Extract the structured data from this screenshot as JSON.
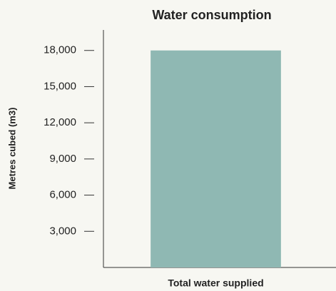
{
  "chart_data": {
    "type": "bar",
    "title": "Water consumption",
    "categories": [
      "Total water supplied"
    ],
    "values": [
      18000
    ],
    "color": "#8fb8b3",
    "ylabel": "Metres cubed (m3)",
    "ylim": [
      0,
      19700
    ],
    "yticks": [
      {
        "value": 3000,
        "label": "3,000"
      },
      {
        "value": 6000,
        "label": "6,000"
      },
      {
        "value": 9000,
        "label": "9,000"
      },
      {
        "value": 12000,
        "label": "12,000"
      },
      {
        "value": 15000,
        "label": "15,000"
      },
      {
        "value": 18000,
        "label": "18,000"
      }
    ],
    "grid": false
  }
}
